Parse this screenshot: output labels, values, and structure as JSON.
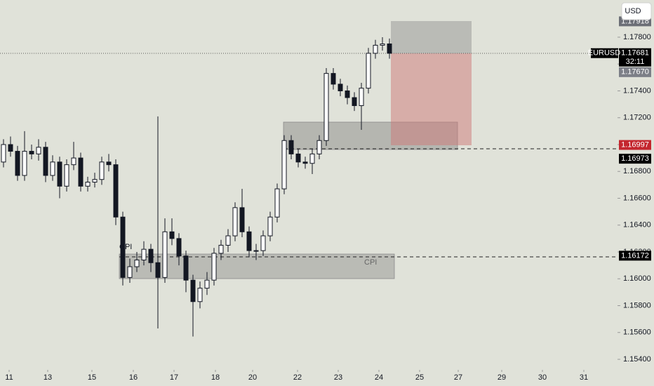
{
  "chart_data": {
    "type": "candlestick",
    "symbol": "EURUSD",
    "currency": "USD",
    "countdown": "32:11",
    "x": [
      0,
      1,
      2,
      3,
      4,
      5,
      6,
      7,
      8,
      9,
      10,
      11,
      12,
      13,
      14,
      15,
      16,
      17,
      18,
      19,
      20,
      21,
      22,
      23,
      24,
      25,
      26,
      27,
      28,
      29,
      30,
      31,
      32,
      33,
      34,
      35,
      36,
      37,
      38,
      39,
      40,
      41,
      42,
      43,
      44,
      45,
      46,
      47,
      48,
      49,
      50,
      51,
      52,
      53,
      54,
      55
    ],
    "open": [
      1.1687,
      1.17,
      1.1695,
      1.1677,
      1.1695,
      1.1693,
      1.1698,
      1.1677,
      1.1687,
      1.1669,
      1.1685,
      1.169,
      1.1669,
      1.1672,
      1.1674,
      1.1687,
      1.1685,
      1.1646,
      1.1601,
      1.1609,
      1.1614,
      1.1622,
      1.1612,
      1.1601,
      1.1635,
      1.163,
      1.1617,
      1.1599,
      1.1583,
      1.1593,
      1.1599,
      1.1619,
      1.1625,
      1.1632,
      1.1653,
      1.1635,
      1.1621,
      1.1621,
      1.1632,
      1.1646,
      1.1667,
      1.1703,
      1.1693,
      1.1687,
      1.1686,
      1.1693,
      1.1703,
      1.1753,
      1.1745,
      1.174,
      1.1735,
      1.1729,
      1.1742,
      1.1768,
      1.1774,
      1.1775
    ],
    "high": [
      1.1704,
      1.1706,
      1.1699,
      1.171,
      1.17,
      1.1704,
      1.1702,
      1.1692,
      1.1691,
      1.1689,
      1.1702,
      1.1694,
      1.1676,
      1.1679,
      1.1691,
      1.1693,
      1.1689,
      1.165,
      1.1615,
      1.162,
      1.1628,
      1.1626,
      1.1721,
      1.1645,
      1.1645,
      1.1634,
      1.1621,
      1.1603,
      1.1598,
      1.1605,
      1.1623,
      1.1629,
      1.1637,
      1.1657,
      1.1667,
      1.1639,
      1.1626,
      1.1636,
      1.165,
      1.1671,
      1.1707,
      1.1707,
      1.1697,
      1.1691,
      1.1697,
      1.1707,
      1.1757,
      1.1757,
      1.1749,
      1.1744,
      1.1739,
      1.1746,
      1.1772,
      1.1778,
      1.178,
      1.1779
    ],
    "low": [
      1.1683,
      1.1691,
      1.1673,
      1.1673,
      1.1689,
      1.1688,
      1.1672,
      1.1673,
      1.166,
      1.1665,
      1.1681,
      1.1665,
      1.1665,
      1.1668,
      1.167,
      1.168,
      1.164,
      1.1595,
      1.1597,
      1.1605,
      1.161,
      1.1605,
      1.1563,
      1.1597,
      1.1625,
      1.161,
      1.159,
      1.1557,
      1.1578,
      1.1588,
      1.1595,
      1.1614,
      1.162,
      1.1628,
      1.1631,
      1.1616,
      1.1614,
      1.1617,
      1.1628,
      1.1642,
      1.1663,
      1.1689,
      1.1683,
      1.1682,
      1.1678,
      1.1689,
      1.1699,
      1.1741,
      1.1736,
      1.173,
      1.1725,
      1.1711,
      1.1738,
      1.1764,
      1.177,
      1.1764
    ],
    "close": [
      1.17,
      1.1695,
      1.1677,
      1.1695,
      1.1693,
      1.1698,
      1.1677,
      1.1687,
      1.1669,
      1.1685,
      1.169,
      1.1669,
      1.1672,
      1.1674,
      1.1687,
      1.1685,
      1.1646,
      1.1601,
      1.1609,
      1.1614,
      1.1622,
      1.1612,
      1.1601,
      1.1635,
      1.163,
      1.1617,
      1.1599,
      1.1583,
      1.1593,
      1.1599,
      1.1619,
      1.1625,
      1.1632,
      1.1653,
      1.1635,
      1.1621,
      1.1621,
      1.1632,
      1.1646,
      1.1667,
      1.1703,
      1.1693,
      1.1687,
      1.1686,
      1.1693,
      1.1703,
      1.1753,
      1.1745,
      1.174,
      1.1735,
      1.1729,
      1.1742,
      1.1768,
      1.1774,
      1.1775,
      1.1768
    ],
    "xlim": [
      -0.5,
      83.5
    ],
    "xticks": [
      {
        "value": 0.8,
        "label": "11"
      },
      {
        "value": 6.3,
        "label": "13"
      },
      {
        "value": 12.6,
        "label": "15"
      },
      {
        "value": 18.5,
        "label": "16"
      },
      {
        "value": 24.3,
        "label": "17"
      },
      {
        "value": 30.2,
        "label": "18"
      },
      {
        "value": 35.5,
        "label": "20"
      },
      {
        "value": 41.9,
        "label": "22"
      },
      {
        "value": 47.7,
        "label": "23"
      },
      {
        "value": 53.5,
        "label": "24"
      },
      {
        "value": 59.3,
        "label": "25"
      },
      {
        "value": 64.8,
        "label": "27"
      },
      {
        "value": 71,
        "label": "29"
      },
      {
        "value": 76.8,
        "label": "30"
      },
      {
        "value": 82.7,
        "label": "31"
      }
    ],
    "ylim": [
      1.15332,
      1.18077
    ],
    "yticks": [
      {
        "value": 1.154,
        "label": "1.15400"
      },
      {
        "value": 1.156,
        "label": "1.15600"
      },
      {
        "value": 1.158,
        "label": "1.15800"
      },
      {
        "value": 1.16,
        "label": "1.16000"
      },
      {
        "value": 1.162,
        "label": "1.16200"
      },
      {
        "value": 1.164,
        "label": "1.16400"
      },
      {
        "value": 1.166,
        "label": "1.16600"
      },
      {
        "value": 1.168,
        "label": "1.16800"
      },
      {
        "value": 1.17,
        "label": "1.17000"
      },
      {
        "value": 1.172,
        "label": "1.17200"
      },
      {
        "value": 1.174,
        "label": "1.17400"
      },
      {
        "value": 1.176,
        "label": "1.17600"
      },
      {
        "value": 1.178,
        "label": "1.17800"
      }
    ],
    "annotations": [
      "CPI",
      "CPI"
    ],
    "price_labels": [
      {
        "value": 1.17918,
        "label": "1.17918",
        "color": "#6b6e76"
      },
      {
        "value": 1.17681,
        "label": "1.17681",
        "color": "#000000"
      },
      {
        "value": 1.1767,
        "label": "1.17670",
        "color": "#7c7f87"
      },
      {
        "value": 1.16997,
        "label": "1.16997",
        "color": "#c4262e"
      },
      {
        "value": 1.16973,
        "label": "1.16973",
        "color": "#000000"
      },
      {
        "value": 1.16172,
        "label": "1.16172",
        "color": "#000000"
      }
    ],
    "up_color": "#ffffff",
    "down_color": "#131722"
  }
}
